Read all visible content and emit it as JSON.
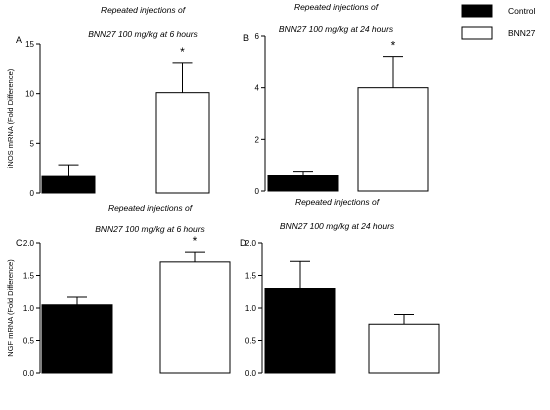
{
  "legend": {
    "entries": [
      {
        "label": "Control",
        "fill": "#000000"
      },
      {
        "label": "BNN27",
        "fill": "#ffffff"
      }
    ]
  },
  "chart_data": [
    {
      "type": "bar",
      "panel": "A",
      "title": [
        "Repeated injections of",
        "BNN27 100 mg/kg at 6 hours"
      ],
      "ylabel": "iNOS mRNA (Fold Difference)",
      "categories": [
        "Control",
        "BNN27"
      ],
      "values": [
        1.7,
        10.1
      ],
      "errors": [
        1.1,
        3.0
      ],
      "significance": [
        "",
        "*"
      ],
      "ylim": [
        0,
        15
      ],
      "yticks": [
        0,
        5,
        10,
        15
      ],
      "yticklabels": [
        "0",
        "5",
        "10",
        "15"
      ]
    },
    {
      "type": "bar",
      "panel": "B",
      "title": [
        "Repeated injections of",
        "BNN27 100 mg/kg at 24 hours"
      ],
      "ylabel": "",
      "categories": [
        "Control",
        "BNN27"
      ],
      "values": [
        0.6,
        4.0
      ],
      "errors": [
        0.15,
        1.2
      ],
      "significance": [
        "",
        "*"
      ],
      "ylim": [
        0,
        6
      ],
      "yticks": [
        0,
        2,
        4,
        6
      ],
      "yticklabels": [
        "0",
        "2",
        "4",
        "6"
      ]
    },
    {
      "type": "bar",
      "panel": "C",
      "title": [
        "Repeated injections of",
        "BNN27 100 mg/kg at 6 hours"
      ],
      "ylabel": "NGF mRNA (Fold Difference)",
      "categories": [
        "Control",
        "BNN27"
      ],
      "values": [
        1.05,
        1.71
      ],
      "errors": [
        0.12,
        0.15
      ],
      "significance": [
        "",
        "*"
      ],
      "ylim": [
        0,
        2.0
      ],
      "yticks": [
        0,
        0.5,
        1.0,
        1.5,
        2.0
      ],
      "yticklabels": [
        "0.0",
        "0.5",
        "1.0",
        "1.5",
        "2.0"
      ]
    },
    {
      "type": "bar",
      "panel": "D",
      "title": [
        "Repeated injections of",
        "BNN27 100 mg/kg at 24 hours"
      ],
      "ylabel": "",
      "categories": [
        "Control",
        "BNN27"
      ],
      "values": [
        1.3,
        0.75
      ],
      "errors": [
        0.42,
        0.15
      ],
      "significance": [
        "",
        ""
      ],
      "ylim": [
        0,
        2.0
      ],
      "yticks": [
        0,
        0.5,
        1.0,
        1.5,
        2.0
      ],
      "yticklabels": [
        "0.0",
        "0.5",
        "1.0",
        "1.5",
        "2.0"
      ]
    }
  ]
}
